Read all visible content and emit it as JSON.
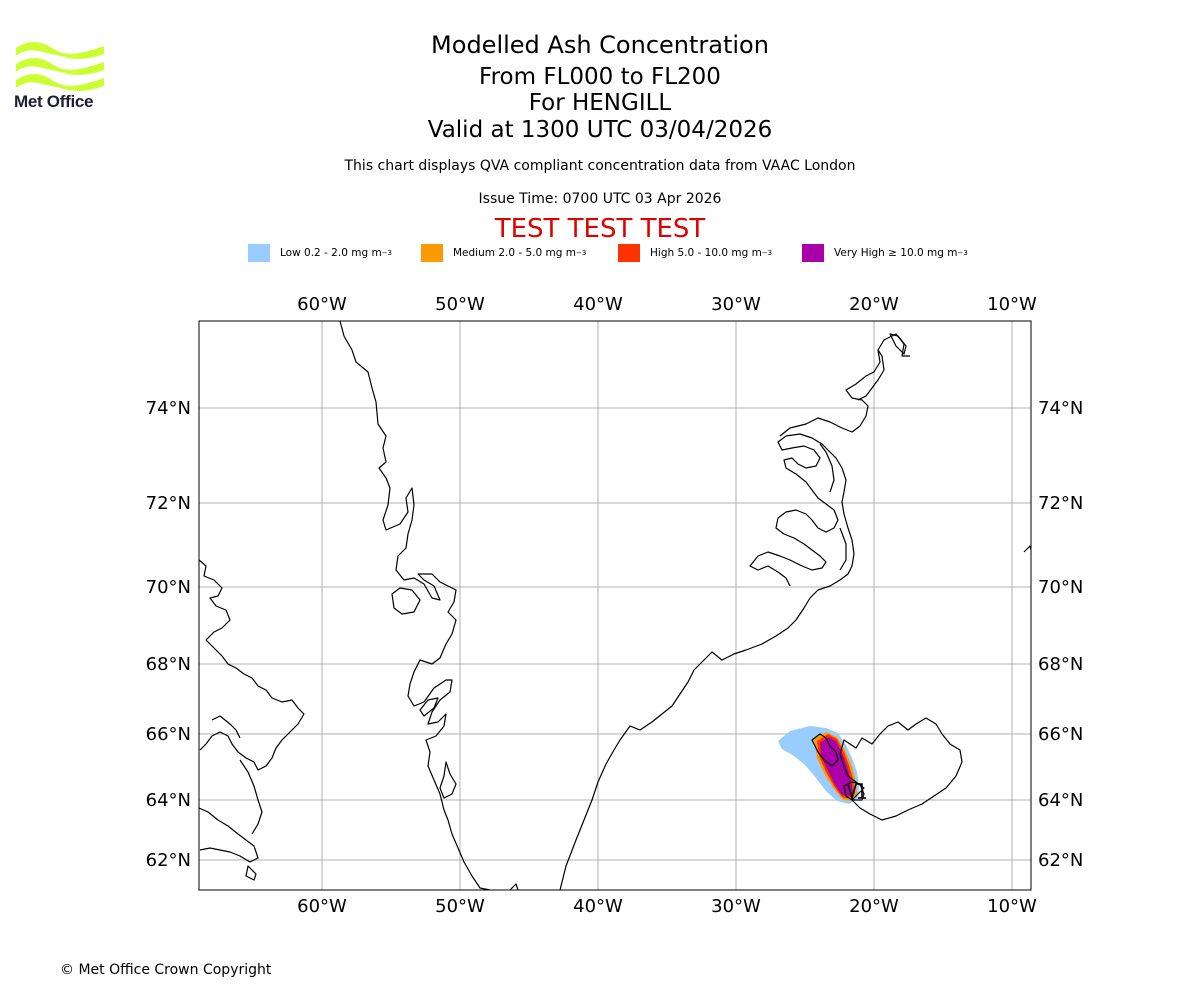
{
  "logo": {
    "text": "Met Office",
    "icon": "met-office-wave-logo",
    "color": "#ccff33"
  },
  "title": {
    "line1": "Modelled Ash Concentration",
    "line2": "From FL000 to FL200",
    "line3": "For HENGILL",
    "line4": "Valid at 1300 UTC 03/04/2026"
  },
  "subtitle": "This chart displays QVA compliant concentration data from VAAC London",
  "issue_time": "Issue Time: 0700 UTC 03 Apr 2026",
  "test_banner": "TEST TEST TEST",
  "legend": [
    {
      "label": "Low 0.2 - 2.0 mg m",
      "color": "#99ccff"
    },
    {
      "label": "Medium 2.0 - 5.0 mg m",
      "color": "#ff9900"
    },
    {
      "label": "High 5.0 - 10.0 mg m",
      "color": "#ff3300"
    },
    {
      "label": "Very High ≥ 10.0 mg m",
      "color": "#aa00aa"
    }
  ],
  "legend_unit_exp": "−3",
  "map": {
    "lon_range": [
      -69,
      -9
    ],
    "lat_range": [
      61.3,
      75.9
    ],
    "lon_ticks": [
      "60°W",
      "50°W",
      "40°W",
      "30°W",
      "20°W",
      "10°W"
    ],
    "lat_ticks": [
      "74°N",
      "72°N",
      "70°N",
      "68°N",
      "66°N",
      "64°N",
      "62°N"
    ],
    "grid": true,
    "projection": "mercator"
  },
  "copyright": "© Met Office Crown Copyright"
}
